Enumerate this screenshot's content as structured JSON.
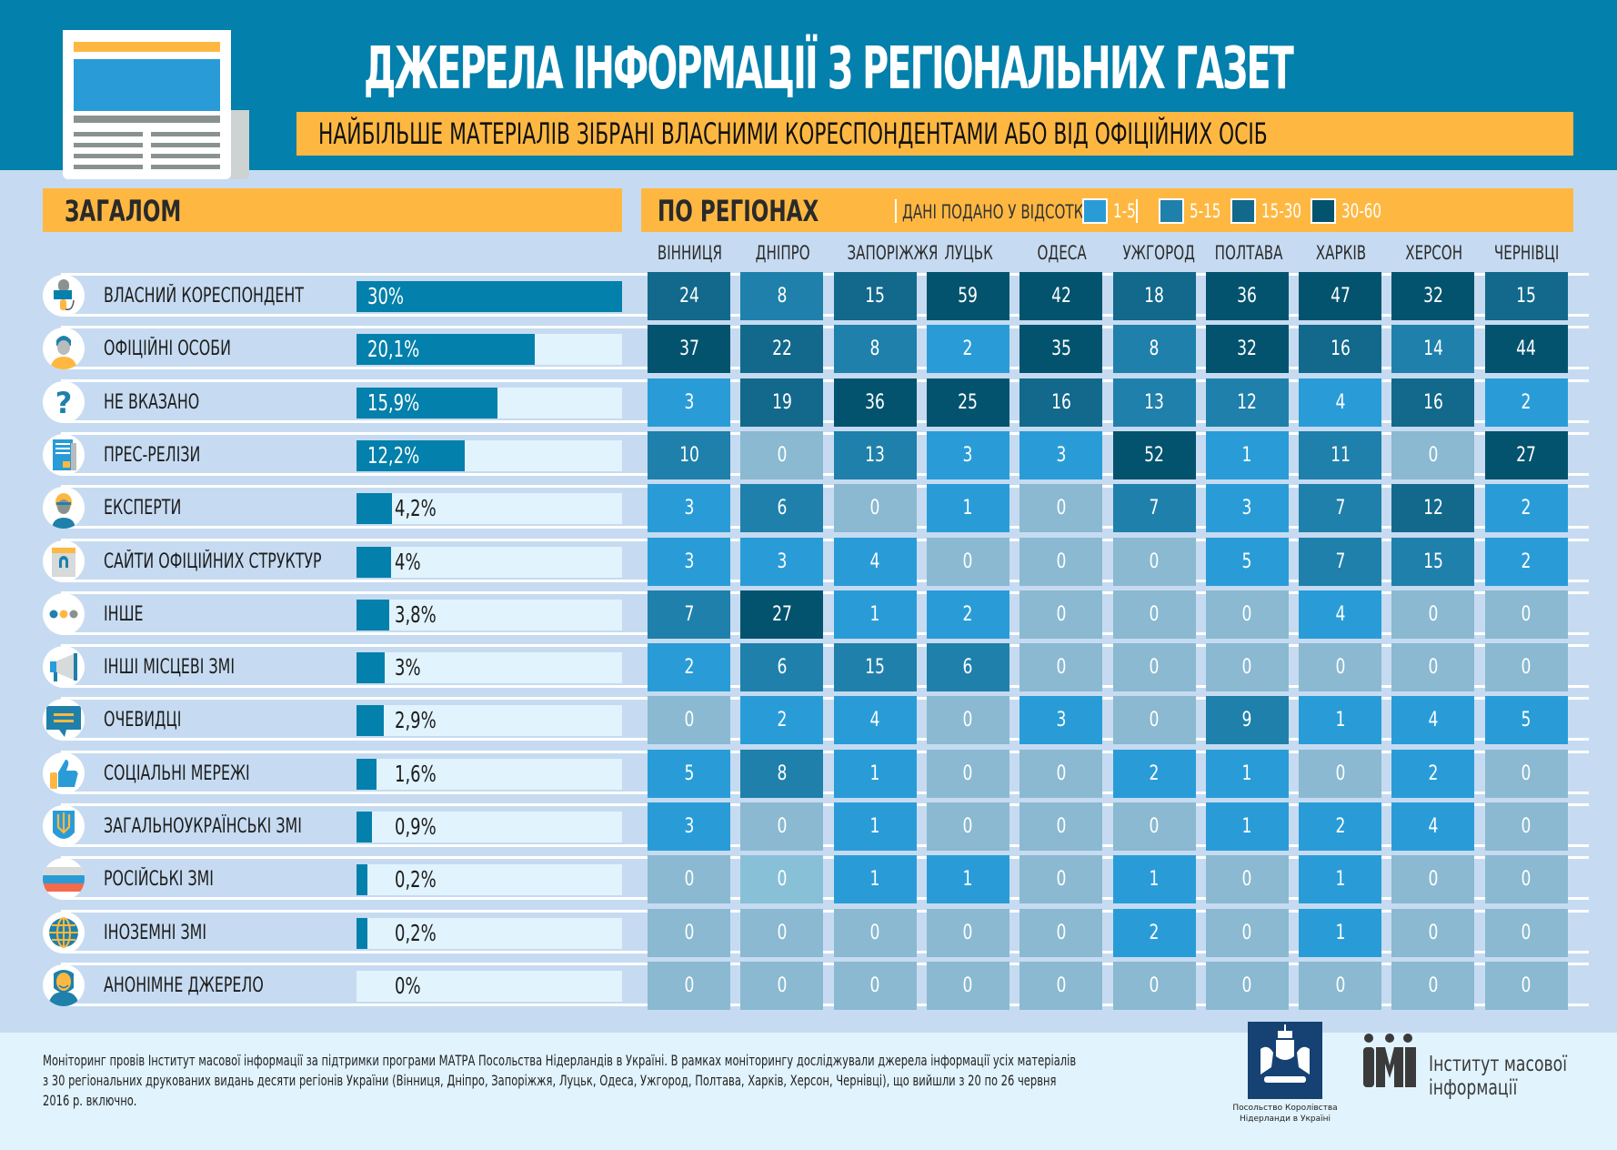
{
  "header": {
    "title": "ДЖЕРЕЛА ІНФОРМАЦІЇ З РЕГІОНАЛЬНИХ ГАЗЕТ",
    "subtitle": "НАЙБІЛЬШЕ МАТЕРІАЛІВ ЗІБРАНІ ВЛАСНИМИ КОРЕСПОНДЕНТАМИ АБО ВІД ОФІЦІЙНИХ ОСІБ",
    "icon": "newspaper-icon"
  },
  "colors": {
    "header_bg": "#0380ab",
    "accent_orange": "#feb842",
    "page_bg": "#c6dbf1",
    "bar_fill": "#0380ab",
    "bar_track": "#e1f3fd",
    "level_0": "#8ab9d1",
    "level_0_light": "#88c0d8",
    "level_1_5": "#299cd8",
    "level_5_15": "#1f80ab",
    "level_15_30": "#12698c",
    "level_30_60": "#03536e"
  },
  "overall": {
    "title": "ЗАГАЛОМ"
  },
  "regions_section": {
    "title": "ПО РЕГІОНАХ",
    "note": "ДАНІ ПОДАНО У ВІДСОТКАХ",
    "legend": [
      {
        "label": "1-5",
        "level": "level_1_5"
      },
      {
        "label": "5-15",
        "level": "level_5_15"
      },
      {
        "label": "15-30",
        "level": "level_15_30"
      },
      {
        "label": "30-60",
        "level": "level_30_60"
      }
    ]
  },
  "chart_data": [
    {
      "type": "bar",
      "title": "ЗАГАЛОМ",
      "orientation": "horizontal",
      "unit": "%",
      "categories": [
        "ВЛАСНИЙ КОРЕСПОНДЕНТ",
        "ОФІЦІЙНІ ОСОБИ",
        "НЕ ВКАЗАНО",
        "ПРЕС-РЕЛІЗИ",
        "ЕКСПЕРТИ",
        "САЙТИ ОФІЦІЙНИХ СТРУКТУР",
        "ІНШЕ",
        "ІНШІ МІСЦЕВІ ЗМІ",
        "ОЧЕВИДЦІ",
        "СОЦІАЛЬНІ МЕРЕЖІ",
        "ЗАГАЛЬНОУКРАЇНСЬКІ ЗМІ",
        "РОСІЙСЬКІ ЗМІ",
        "ІНОЗЕМНІ ЗМІ",
        "АНОНІМНЕ ДЖЕРЕЛО"
      ],
      "values": [
        30,
        20.1,
        15.9,
        12.2,
        4.2,
        4,
        3.8,
        3,
        2.9,
        1.6,
        0.9,
        0.2,
        0.2,
        0
      ],
      "value_labels": [
        "30%",
        "20,1%",
        "15,9%",
        "12,2%",
        "4,2%",
        "4%",
        "3,8%",
        "3%",
        "2,9%",
        "1,6%",
        "0,9%",
        "0,2%",
        "0,2%",
        "0%"
      ],
      "icons": [
        "microphone-icon",
        "official-person-icon",
        "question-mark-icon",
        "press-release-icon",
        "expert-icon",
        "website-icon",
        "dots-icon",
        "megaphone-icon",
        "speech-bubble-icon",
        "thumbs-up-icon",
        "trident-icon",
        "russian-flag-icon",
        "globe-icon",
        "anonymous-mask-icon"
      ],
      "xlim": [
        0,
        30
      ]
    },
    {
      "type": "heatmap",
      "title": "ПО РЕГІОНАХ",
      "subtitle": "ДАНІ ПОДАНО У ВІДСОТКАХ",
      "columns": [
        "ВІННИЦЯ",
        "ДНІПРО",
        "ЗАПОРІЖЖЯ",
        "ЛУЦЬК",
        "ОДЕСА",
        "УЖГОРОД",
        "ПОЛТАВА",
        "ХАРКІВ",
        "ХЕРСОН",
        "ЧЕРНІВЦІ"
      ],
      "rows": [
        "ВЛАСНИЙ КОРЕСПОНДЕНТ",
        "ОФІЦІЙНІ ОСОБИ",
        "НЕ ВКАЗАНО",
        "ПРЕС-РЕЛІЗИ",
        "ЕКСПЕРТИ",
        "САЙТИ ОФІЦІЙНИХ СТРУКТУР",
        "ІНШЕ",
        "ІНШІ МІСЦЕВІ ЗМІ",
        "ОЧЕВИДЦІ",
        "СОЦІАЛЬНІ МЕРЕЖІ",
        "ЗАГАЛЬНОУКРАЇНСЬКІ ЗМІ",
        "РОСІЙСЬКІ ЗМІ",
        "ІНОЗЕМНІ ЗМІ",
        "АНОНІМНЕ ДЖЕРЕЛО"
      ],
      "values": [
        [
          24,
          8,
          15,
          59,
          42,
          18,
          36,
          47,
          32,
          15
        ],
        [
          37,
          22,
          8,
          2,
          35,
          8,
          32,
          16,
          14,
          44
        ],
        [
          3,
          19,
          36,
          25,
          16,
          13,
          12,
          4,
          16,
          2
        ],
        [
          10,
          0,
          13,
          3,
          3,
          52,
          1,
          11,
          0,
          27
        ],
        [
          3,
          6,
          0,
          1,
          0,
          7,
          3,
          7,
          12,
          2
        ],
        [
          3,
          3,
          4,
          0,
          0,
          0,
          5,
          7,
          15,
          2
        ],
        [
          7,
          27,
          1,
          2,
          0,
          0,
          0,
          4,
          0,
          0
        ],
        [
          2,
          6,
          15,
          6,
          0,
          0,
          0,
          0,
          0,
          0
        ],
        [
          0,
          2,
          4,
          0,
          3,
          0,
          9,
          1,
          4,
          5
        ],
        [
          5,
          8,
          1,
          0,
          0,
          2,
          1,
          0,
          2,
          0
        ],
        [
          3,
          0,
          1,
          0,
          0,
          0,
          1,
          2,
          4,
          0
        ],
        [
          0,
          0,
          1,
          1,
          0,
          1,
          0,
          1,
          0,
          0
        ],
        [
          0,
          0,
          0,
          0,
          0,
          2,
          0,
          1,
          0,
          0
        ],
        [
          0,
          0,
          0,
          0,
          0,
          0,
          0,
          0,
          0,
          0
        ]
      ],
      "levels": [
        [
          3,
          2,
          3,
          4,
          4,
          3,
          4,
          4,
          4,
          3
        ],
        [
          4,
          3,
          2,
          1,
          4,
          2,
          4,
          3,
          2,
          4
        ],
        [
          1,
          3,
          4,
          4,
          3,
          2,
          2,
          1,
          3,
          1
        ],
        [
          2,
          0,
          2,
          1,
          1,
          4,
          1,
          2,
          0,
          4
        ],
        [
          1,
          2,
          0,
          1,
          0,
          2,
          1,
          2,
          3,
          1
        ],
        [
          1,
          1,
          1,
          0,
          0,
          0,
          1,
          2,
          2,
          1
        ],
        [
          2,
          4,
          1,
          1,
          0,
          0,
          0,
          1,
          0,
          0
        ],
        [
          1,
          2,
          2,
          2,
          0,
          0,
          0,
          0,
          0,
          0
        ],
        [
          0,
          1,
          1,
          0,
          1,
          0,
          2,
          1,
          1,
          1
        ],
        [
          1,
          2,
          1,
          0,
          0,
          1,
          1,
          0,
          1,
          0
        ],
        [
          1,
          0,
          1,
          0,
          0,
          0,
          1,
          1,
          1,
          0
        ],
        [
          0,
          0,
          1,
          1,
          0,
          1,
          0,
          1,
          0,
          0
        ],
        [
          0,
          0,
          0,
          0,
          0,
          1,
          0,
          1,
          0,
          0
        ],
        [
          0,
          0,
          0,
          0,
          0,
          0,
          0,
          0,
          0,
          0
        ]
      ],
      "level_legend": [
        "0",
        "1-5",
        "5-15",
        "15-30",
        "30-60"
      ]
    }
  ],
  "footer": {
    "text": "Моніторинг провів Інститут масової інформації за підтримки програми МАТРА Посольства Нідерландів в Україні. В рамках моніторингу досліджували джерела інформації усіх матеріалів з 30 регіональних друкованих видань десяти регіонів України (Вінниця, Дніпро, Запоріжжя, Луцьк, Одеса, Ужгород, Полтава, Харків, Херсон, Чернівці), що вийшли з 20 по 26 червня 2016 р. включно.",
    "embassy_caption_line1": "Посольство Королівства",
    "embassy_caption_line2": "Нідерланди в Україні",
    "imi_line1": "Інститут масової",
    "imi_line2": "інформації"
  }
}
